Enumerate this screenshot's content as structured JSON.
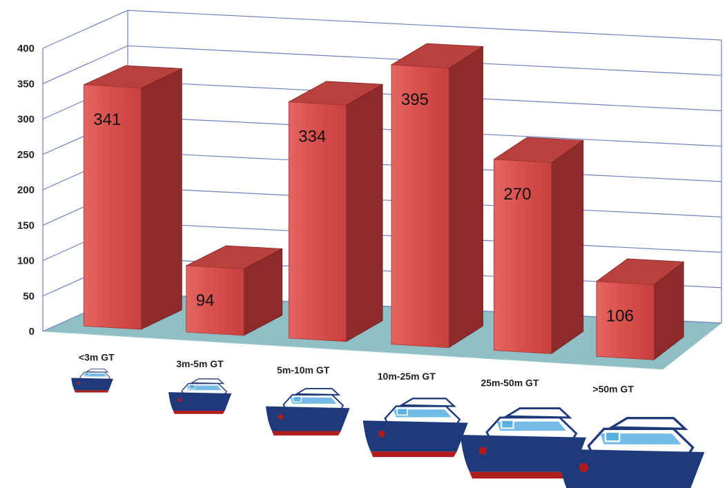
{
  "chart_data": {
    "type": "bar",
    "style": "3d-column",
    "categories": [
      "<3m GT",
      "3m-5m GT",
      "5m-10m GT",
      "10m-25m GT",
      "25m-50m GT",
      ">50m GT"
    ],
    "values": [
      341,
      94,
      334,
      395,
      270,
      106
    ],
    "data_labels": [
      "341",
      "94",
      "334",
      "395",
      "270",
      "106"
    ],
    "ylim": [
      0,
      400
    ],
    "yticks": [
      0,
      50,
      100,
      150,
      200,
      250,
      300,
      350,
      400
    ],
    "ytick_labels": [
      "0",
      "50",
      "100",
      "150",
      "200",
      "250",
      "300",
      "350",
      "400"
    ],
    "grid": true,
    "title": "",
    "xlabel": "",
    "ylabel": "",
    "category_icons": [
      "ship-icon",
      "ship-icon",
      "ship-icon",
      "ship-icon",
      "ship-icon",
      "ship-icon"
    ],
    "colors": {
      "bar_front": "#d9504d",
      "bar_side": "#8e2a29",
      "bar_top": "#b8403d",
      "floor": "#8fbfc4",
      "grid": "#6f7fc4",
      "wall": "#ffffff",
      "ship_hull": "#1f3a7a",
      "ship_keel": "#b01c1c",
      "ship_cabin": "#ffffff",
      "ship_window": "#5ab0e0"
    }
  }
}
